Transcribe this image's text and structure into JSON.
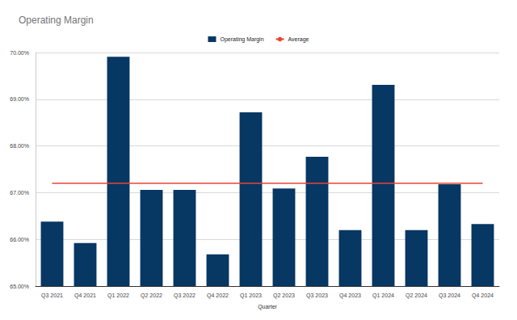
{
  "chart_data": {
    "type": "bar",
    "title": "Operating Margin",
    "x_label": "Quarter",
    "categories": [
      "Q3 2021",
      "Q4 2021",
      "Q1 2022",
      "Q2 2022",
      "Q3 2022",
      "Q4 2022",
      "Q1 2023",
      "Q2 2023",
      "Q3 2023",
      "Q4 2023",
      "Q1 2024",
      "Q2 2024",
      "Q3 2024",
      "Q4 2024"
    ],
    "series": [
      {
        "name": "Operating Margin",
        "type": "bar",
        "color": "#073763",
        "values": [
          66.38,
          65.92,
          69.91,
          67.06,
          67.06,
          65.68,
          68.72,
          67.09,
          67.77,
          66.2,
          69.31,
          66.2,
          67.18,
          66.33
        ]
      },
      {
        "name": "Average",
        "type": "line",
        "color": "#ea4335",
        "values": [
          67.2,
          67.2,
          67.2,
          67.2,
          67.2,
          67.2,
          67.2,
          67.2,
          67.2,
          67.2,
          67.2,
          67.2,
          67.2,
          67.2
        ]
      }
    ],
    "ylim": [
      65,
      70
    ],
    "yticks": [
      {
        "value": 65,
        "label": "65.00%"
      },
      {
        "value": 66,
        "label": "66.00%"
      },
      {
        "value": 67,
        "label": "67.00%"
      },
      {
        "value": 68,
        "label": "68.00%"
      },
      {
        "value": 69,
        "label": "69.00%"
      },
      {
        "value": 70,
        "label": "70.00%"
      }
    ],
    "grid": true,
    "legend": "top"
  }
}
